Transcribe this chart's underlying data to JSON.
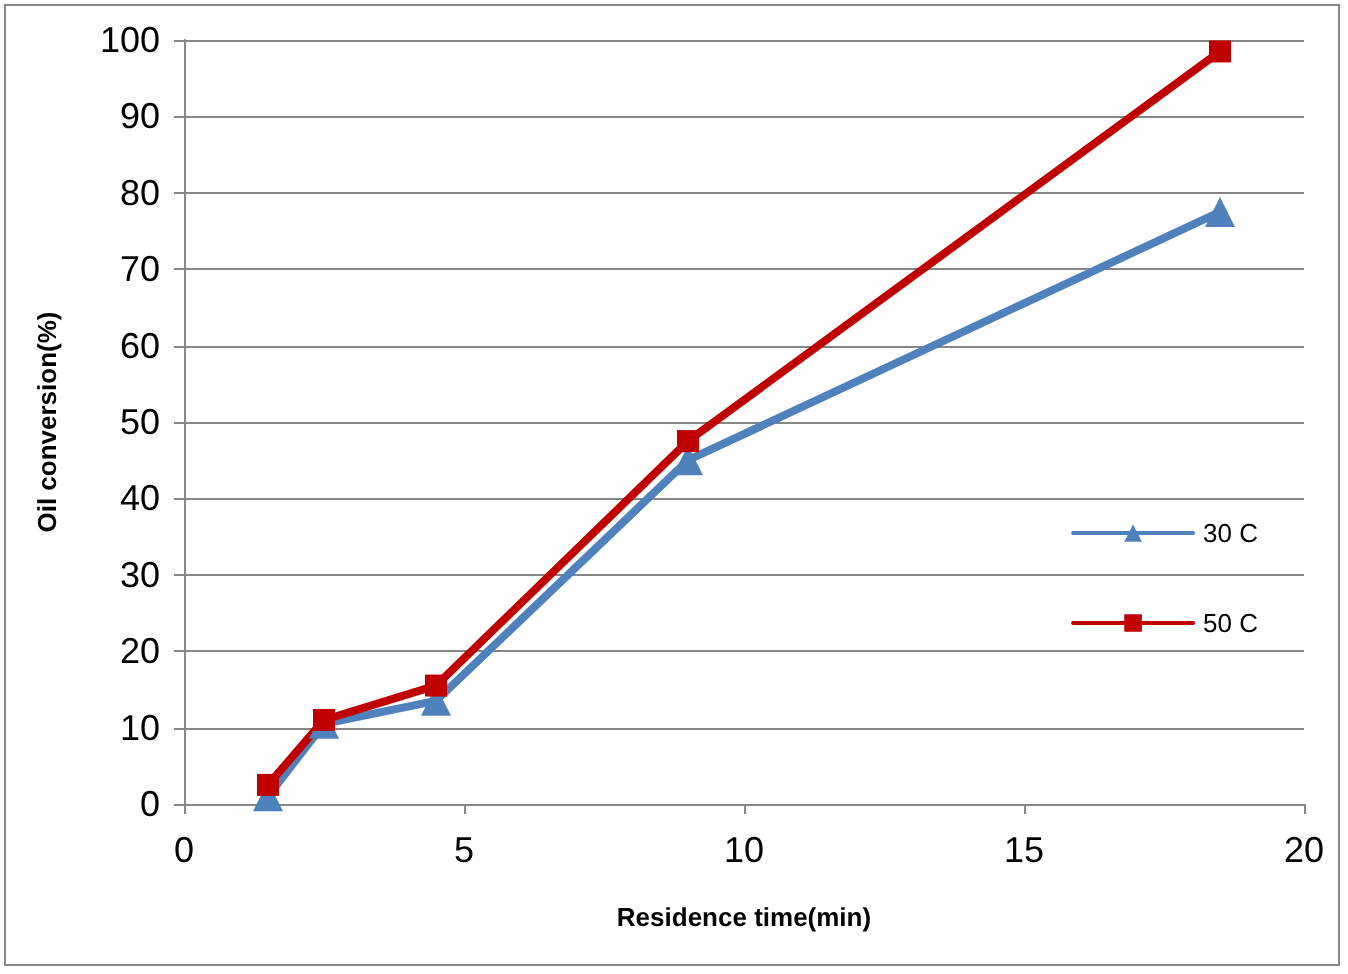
{
  "chart_data": {
    "type": "line",
    "xlabel": "Residence time(min)",
    "ylabel": "Oil conversion(%)",
    "x": [
      1.5,
      2.5,
      4.5,
      9,
      18.5
    ],
    "series": [
      {
        "name": "30 C",
        "color": "#4f81bd",
        "marker": "triangle",
        "values": [
          1,
          10.5,
          13.5,
          45,
          77.5
        ]
      },
      {
        "name": "50 C",
        "color": "#c00000",
        "marker": "square",
        "values": [
          2.5,
          11,
          15.5,
          47.5,
          98.5
        ]
      }
    ],
    "xlim": [
      0,
      20
    ],
    "xticks": [
      0,
      5,
      10,
      15,
      20
    ],
    "ylim": [
      0,
      100
    ],
    "yticks": [
      0,
      10,
      20,
      30,
      40,
      50,
      60,
      70,
      80,
      90,
      100
    ],
    "grid": "y",
    "legend": "right",
    "line_style": "solid"
  }
}
